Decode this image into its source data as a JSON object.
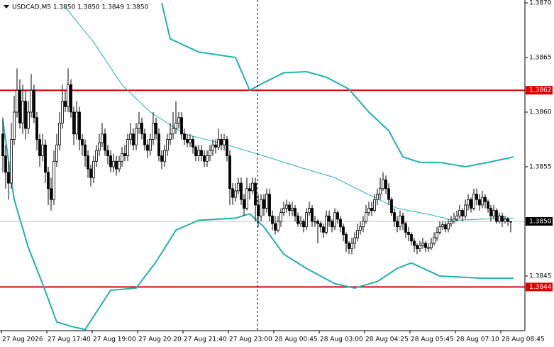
{
  "chart_data": {
    "type": "candlestick",
    "title": "USDCAD,M5  1.3850 1.3850 1.3849 1.3850",
    "ylim": [
      1.384,
      1.387
    ],
    "yticks": [
      {
        "value": 1.387,
        "label": "1.3870"
      },
      {
        "value": 1.3865,
        "label": "1.3865"
      },
      {
        "value": 1.386,
        "label": "1.3860"
      },
      {
        "value": 1.3855,
        "label": "1.3855"
      },
      {
        "value": 1.3845,
        "label": "1.3845"
      }
    ],
    "xticks": [
      {
        "value": 0,
        "label": "27 Aug 2026"
      },
      {
        "value": 16,
        "label": "27 Aug 17:40"
      },
      {
        "value": 32,
        "label": "27 Aug 19:00"
      },
      {
        "value": 48,
        "label": "27 Aug 20:20"
      },
      {
        "value": 64,
        "label": "27 Aug 21:40"
      },
      {
        "value": 80,
        "label": "27 Aug 23:00"
      },
      {
        "value": 96,
        "label": "28 Aug 00:45"
      },
      {
        "value": 112,
        "label": "28 Aug 03:00"
      },
      {
        "value": 128,
        "label": "28 Aug 04:25"
      },
      {
        "value": 144,
        "label": "28 Aug 05:45"
      },
      {
        "value": 160,
        "label": "28 Aug 07:10"
      },
      {
        "value": 176,
        "label": "28 Aug 08:45"
      }
    ],
    "levels": [
      {
        "value": 1.3862,
        "label": "1.3862",
        "color": "#e00000",
        "box_color": "#e00000"
      },
      {
        "value": 1.3844,
        "label": "1.3844",
        "color": "#e00000",
        "box_color": "#e00000"
      },
      {
        "value": 1.385,
        "label": "1.3850",
        "color": "#c0c0c0",
        "box_color": "#000000"
      }
    ],
    "bands": [
      {
        "color": "#20b2aa",
        "x": [
          56,
          59,
          69,
          82,
          87,
          92,
          99,
          107,
          114,
          122,
          129,
          136,
          141,
          147,
          154,
          163,
          171,
          180
        ],
        "values": [
          1.387,
          1.38667,
          1.38655,
          1.3865,
          1.3862,
          1.38627,
          1.38636,
          1.38637,
          1.38632,
          1.38621,
          1.386,
          1.38583,
          1.38559,
          1.38554,
          1.38554,
          1.3855,
          1.38554,
          1.38559
        ]
      },
      {
        "color": "#20b2aa",
        "x": [
          22,
          32,
          42,
          52,
          64,
          79,
          92,
          104,
          117,
          127,
          139,
          149,
          159,
          169,
          180
        ],
        "values": [
          1.38696,
          1.38664,
          1.38625,
          1.386,
          1.3858,
          1.3857,
          1.3856,
          1.3855,
          1.3854,
          1.38527,
          1.38512,
          1.38507,
          1.38501,
          1.38502,
          1.38503
        ]
      },
      {
        "color": "#20b2aa",
        "x": [
          0,
          4,
          9,
          14,
          19,
          24,
          29,
          33,
          38,
          47,
          54,
          61,
          69,
          82,
          87,
          92,
          99,
          107,
          117,
          124,
          132,
          139,
          144,
          154,
          169,
          180
        ],
        "values": [
          1.38592,
          1.3852,
          1.38476,
          1.38443,
          1.38408,
          1.38404,
          1.38401,
          1.38417,
          1.38437,
          1.38439,
          1.38463,
          1.38492,
          1.38501,
          1.38503,
          1.38507,
          1.38495,
          1.3847,
          1.38457,
          1.38443,
          1.38439,
          1.38445,
          1.38457,
          1.38462,
          1.3845,
          1.38448,
          1.38448
        ]
      }
    ],
    "candles": [
      [
        1.3858,
        1.38595,
        1.38545,
        1.3856
      ],
      [
        1.3856,
        1.3857,
        1.3853,
        1.38545
      ],
      [
        1.38545,
        1.38555,
        1.3852,
        1.38535
      ],
      [
        1.38535,
        1.3859,
        1.3853,
        1.38575
      ],
      [
        1.38575,
        1.38615,
        1.3857,
        1.386
      ],
      [
        1.386,
        1.3864,
        1.38595,
        1.3862
      ],
      [
        1.3862,
        1.3863,
        1.38585,
        1.3859
      ],
      [
        1.3859,
        1.38625,
        1.3858,
        1.3861
      ],
      [
        1.3861,
        1.3862,
        1.38575,
        1.38585
      ],
      [
        1.38585,
        1.3861,
        1.3858,
        1.386
      ],
      [
        1.386,
        1.38635,
        1.38595,
        1.3862
      ],
      [
        1.3862,
        1.38625,
        1.3859,
        1.38595
      ],
      [
        1.38595,
        1.386,
        1.38565,
        1.38575
      ],
      [
        1.38575,
        1.3858,
        1.3855,
        1.3856
      ],
      [
        1.3856,
        1.3858,
        1.38555,
        1.3857
      ],
      [
        1.3857,
        1.38575,
        1.38535,
        1.38545
      ],
      [
        1.38545,
        1.3855,
        1.38515,
        1.3853
      ],
      [
        1.3853,
        1.3854,
        1.3851,
        1.3852
      ],
      [
        1.3852,
        1.38565,
        1.38515,
        1.38555
      ],
      [
        1.38555,
        1.3858,
        1.3855,
        1.3857
      ],
      [
        1.3857,
        1.386,
        1.38565,
        1.3859
      ],
      [
        1.3859,
        1.38625,
        1.38585,
        1.3861
      ],
      [
        1.3861,
        1.3862,
        1.386,
        1.38605
      ],
      [
        1.38605,
        1.3864,
        1.386,
        1.38625
      ],
      [
        1.38625,
        1.3863,
        1.38595,
        1.386
      ],
      [
        1.386,
        1.38605,
        1.3857,
        1.3858
      ],
      [
        1.3858,
        1.3861,
        1.38575,
        1.386
      ],
      [
        1.386,
        1.38605,
        1.38565,
        1.38575
      ],
      [
        1.38575,
        1.3858,
        1.3856,
        1.3857
      ],
      [
        1.3857,
        1.38575,
        1.3855,
        1.3856
      ],
      [
        1.3856,
        1.38565,
        1.3854,
        1.38548
      ],
      [
        1.38548,
        1.38552,
        1.38532,
        1.3854
      ],
      [
        1.3854,
        1.3856,
        1.38535,
        1.38555
      ],
      [
        1.38555,
        1.3857,
        1.3855,
        1.38565
      ],
      [
        1.38565,
        1.3858,
        1.3856,
        1.38572
      ],
      [
        1.38572,
        1.3859,
        1.38568,
        1.3858
      ],
      [
        1.3858,
        1.38585,
        1.3856,
        1.38565
      ],
      [
        1.38565,
        1.3857,
        1.38552,
        1.3856
      ],
      [
        1.3856,
        1.38565,
        1.38545,
        1.3855
      ],
      [
        1.3855,
        1.38562,
        1.38545,
        1.38555
      ],
      [
        1.38555,
        1.3856,
        1.38542,
        1.38548
      ],
      [
        1.38548,
        1.3856,
        1.38545,
        1.38555
      ],
      [
        1.38555,
        1.38568,
        1.3855,
        1.38562
      ],
      [
        1.38562,
        1.3857,
        1.38555,
        1.3856
      ],
      [
        1.3856,
        1.3858,
        1.38555,
        1.38575
      ],
      [
        1.38575,
        1.3859,
        1.3857,
        1.3858
      ],
      [
        1.3858,
        1.38585,
        1.38565,
        1.3857
      ],
      [
        1.3857,
        1.3859,
        1.38565,
        1.38585
      ],
      [
        1.38585,
        1.386,
        1.3858,
        1.3859
      ],
      [
        1.3859,
        1.38595,
        1.38575,
        1.3858
      ],
      [
        1.3858,
        1.38585,
        1.38565,
        1.3857
      ],
      [
        1.3857,
        1.38575,
        1.38558,
        1.38565
      ],
      [
        1.38565,
        1.3858,
        1.3856,
        1.38575
      ],
      [
        1.38575,
        1.386,
        1.3857,
        1.3859
      ],
      [
        1.3859,
        1.38595,
        1.38575,
        1.3858
      ],
      [
        1.3858,
        1.38585,
        1.38555,
        1.3856
      ],
      [
        1.3856,
        1.38565,
        1.38548,
        1.38555
      ],
      [
        1.38555,
        1.3857,
        1.3855,
        1.38565
      ],
      [
        1.38565,
        1.3858,
        1.3856,
        1.38575
      ],
      [
        1.38575,
        1.3859,
        1.3857,
        1.3858
      ],
      [
        1.3858,
        1.386,
        1.38575,
        1.38585
      ],
      [
        1.38585,
        1.3861,
        1.3858,
        1.3859
      ],
      [
        1.3859,
        1.386,
        1.38585,
        1.38595
      ],
      [
        1.38595,
        1.386,
        1.38575,
        1.3858
      ],
      [
        1.3858,
        1.38585,
        1.3857,
        1.38575
      ],
      [
        1.38575,
        1.3858,
        1.38568,
        1.38572
      ],
      [
        1.38572,
        1.3858,
        1.38568,
        1.38575
      ],
      [
        1.38575,
        1.38578,
        1.38562,
        1.38568
      ],
      [
        1.38568,
        1.3857,
        1.38555,
        1.3856
      ],
      [
        1.3856,
        1.3857,
        1.38555,
        1.38565
      ],
      [
        1.38565,
        1.3857,
        1.38555,
        1.3856
      ],
      [
        1.3856,
        1.38565,
        1.3855,
        1.38555
      ],
      [
        1.38555,
        1.38565,
        1.3855,
        1.3856
      ],
      [
        1.3856,
        1.3857,
        1.38555,
        1.38565
      ],
      [
        1.38565,
        1.38575,
        1.3856,
        1.3857
      ],
      [
        1.3857,
        1.38575,
        1.38562,
        1.38568
      ],
      [
        1.38568,
        1.38585,
        1.38565,
        1.38575
      ],
      [
        1.38575,
        1.3858,
        1.38565,
        1.3857
      ],
      [
        1.3857,
        1.3858,
        1.38565,
        1.38575
      ],
      [
        1.38575,
        1.38578,
        1.38555,
        1.3856
      ],
      [
        1.3856,
        1.38565,
        1.38515,
        1.3853
      ],
      [
        1.3853,
        1.38535,
        1.38515,
        1.38522
      ],
      [
        1.38522,
        1.38535,
        1.38518,
        1.38528
      ],
      [
        1.38528,
        1.3854,
        1.38525,
        1.38535
      ],
      [
        1.38535,
        1.3854,
        1.38515,
        1.3852
      ],
      [
        1.3852,
        1.38525,
        1.38505,
        1.38512
      ],
      [
        1.38512,
        1.3854,
        1.3851,
        1.3853
      ],
      [
        1.3853,
        1.38535,
        1.3852,
        1.38528
      ],
      [
        1.38528,
        1.3854,
        1.38525,
        1.38535
      ],
      [
        1.38535,
        1.3854,
        1.385,
        1.38515
      ],
      [
        1.38515,
        1.38525,
        1.38495,
        1.38505
      ],
      [
        1.38505,
        1.38525,
        1.385,
        1.3852
      ],
      [
        1.3852,
        1.38525,
        1.38505,
        1.38512
      ],
      [
        1.38512,
        1.3853,
        1.38508,
        1.38525
      ],
      [
        1.38525,
        1.3853,
        1.385,
        1.38505
      ],
      [
        1.38505,
        1.3851,
        1.38492,
        1.38498
      ],
      [
        1.38498,
        1.38505,
        1.38488,
        1.38492
      ],
      [
        1.38492,
        1.38505,
        1.3849,
        1.385
      ],
      [
        1.385,
        1.38512,
        1.38495,
        1.38508
      ],
      [
        1.38508,
        1.38518,
        1.38505,
        1.38512
      ],
      [
        1.38512,
        1.3852,
        1.38508,
        1.38515
      ],
      [
        1.38515,
        1.38518,
        1.38505,
        1.3851
      ],
      [
        1.3851,
        1.38518,
        1.38505,
        1.38512
      ],
      [
        1.38512,
        1.38515,
        1.385,
        1.38505
      ],
      [
        1.38505,
        1.38508,
        1.38495,
        1.38498
      ],
      [
        1.38498,
        1.38505,
        1.38495,
        1.385
      ],
      [
        1.385,
        1.38502,
        1.3849,
        1.38495
      ],
      [
        1.38495,
        1.38512,
        1.38492,
        1.38508
      ],
      [
        1.38508,
        1.38518,
        1.38505,
        1.38512
      ],
      [
        1.38512,
        1.38515,
        1.38495,
        1.385
      ],
      [
        1.385,
        1.38505,
        1.38495,
        1.385
      ],
      [
        1.385,
        1.38502,
        1.3848,
        1.38498
      ],
      [
        1.38498,
        1.385,
        1.3849,
        1.38495
      ],
      [
        1.38495,
        1.38498,
        1.38485,
        1.3849
      ],
      [
        1.3849,
        1.3851,
        1.38488,
        1.38505
      ],
      [
        1.38505,
        1.3851,
        1.38495,
        1.385
      ],
      [
        1.385,
        1.38502,
        1.3849,
        1.38495
      ],
      [
        1.38495,
        1.38512,
        1.38492,
        1.38508
      ],
      [
        1.38508,
        1.3851,
        1.38498,
        1.38502
      ],
      [
        1.38502,
        1.38505,
        1.3849,
        1.38495
      ],
      [
        1.38495,
        1.38498,
        1.38482,
        1.38488
      ],
      [
        1.38488,
        1.3849,
        1.38472,
        1.3848
      ],
      [
        1.3848,
        1.38482,
        1.3847,
        1.38475
      ],
      [
        1.38475,
        1.38485,
        1.3847,
        1.3848
      ],
      [
        1.3848,
        1.3849,
        1.38475,
        1.38485
      ],
      [
        1.38485,
        1.38498,
        1.38482,
        1.38492
      ],
      [
        1.38492,
        1.385,
        1.38488,
        1.38495
      ],
      [
        1.38495,
        1.38505,
        1.3849,
        1.385
      ],
      [
        1.385,
        1.38515,
        1.38498,
        1.38508
      ],
      [
        1.38508,
        1.38518,
        1.38505,
        1.38512
      ],
      [
        1.38512,
        1.38518,
        1.38505,
        1.3851
      ],
      [
        1.3851,
        1.38525,
        1.38508,
        1.3852
      ],
      [
        1.3852,
        1.3853,
        1.38515,
        1.38525
      ],
      [
        1.38525,
        1.3854,
        1.3852,
        1.3853
      ],
      [
        1.3853,
        1.38545,
        1.38528,
        1.38538
      ],
      [
        1.38538,
        1.38542,
        1.38525,
        1.3853
      ],
      [
        1.3853,
        1.38535,
        1.38515,
        1.3852
      ],
      [
        1.3852,
        1.38522,
        1.38505,
        1.38508
      ],
      [
        1.38508,
        1.38512,
        1.38495,
        1.385
      ],
      [
        1.385,
        1.38505,
        1.3849,
        1.38495
      ],
      [
        1.38495,
        1.3851,
        1.38492,
        1.38505
      ],
      [
        1.38505,
        1.38508,
        1.38492,
        1.38498
      ],
      [
        1.38498,
        1.385,
        1.38485,
        1.3849
      ],
      [
        1.3849,
        1.38495,
        1.38482,
        1.38488
      ],
      [
        1.38488,
        1.3849,
        1.38478,
        1.38482
      ],
      [
        1.38482,
        1.38485,
        1.38472,
        1.38478
      ],
      [
        1.38478,
        1.3848,
        1.3847,
        1.38475
      ],
      [
        1.38475,
        1.38482,
        1.38472,
        1.38478
      ],
      [
        1.38478,
        1.38485,
        1.38475,
        1.3848
      ],
      [
        1.3848,
        1.38482,
        1.38472,
        1.38476
      ],
      [
        1.38476,
        1.3848,
        1.38472,
        1.38476
      ],
      [
        1.38476,
        1.38485,
        1.38474,
        1.3848
      ],
      [
        1.3848,
        1.3849,
        1.38478,
        1.38485
      ],
      [
        1.38485,
        1.38495,
        1.38482,
        1.3849
      ],
      [
        1.3849,
        1.385,
        1.38488,
        1.38495
      ],
      [
        1.38495,
        1.385,
        1.38492,
        1.38497
      ],
      [
        1.38497,
        1.385,
        1.3849,
        1.38493
      ],
      [
        1.38493,
        1.38502,
        1.3849,
        1.38498
      ],
      [
        1.38498,
        1.38505,
        1.38495,
        1.385
      ],
      [
        1.385,
        1.38508,
        1.38498,
        1.38502
      ],
      [
        1.38502,
        1.3851,
        1.385,
        1.38505
      ],
      [
        1.38505,
        1.38515,
        1.38502,
        1.3851
      ],
      [
        1.3851,
        1.38512,
        1.385,
        1.38505
      ],
      [
        1.38505,
        1.3852,
        1.38502,
        1.38515
      ],
      [
        1.38515,
        1.38525,
        1.3851,
        1.3852
      ],
      [
        1.3852,
        1.38522,
        1.38508,
        1.38512
      ],
      [
        1.38512,
        1.3853,
        1.3851,
        1.38525
      ],
      [
        1.38525,
        1.3853,
        1.38515,
        1.3852
      ],
      [
        1.3852,
        1.38525,
        1.3851,
        1.38515
      ],
      [
        1.38515,
        1.38528,
        1.38512,
        1.38522
      ],
      [
        1.38522,
        1.38525,
        1.38512,
        1.38518
      ],
      [
        1.38518,
        1.3852,
        1.38508,
        1.38512
      ],
      [
        1.38512,
        1.38515,
        1.385,
        1.38505
      ],
      [
        1.38505,
        1.38515,
        1.38502,
        1.3851
      ],
      [
        1.3851,
        1.38512,
        1.38498,
        1.385
      ],
      [
        1.385,
        1.38508,
        1.38498,
        1.38505
      ],
      [
        1.38505,
        1.38508,
        1.38495,
        1.385
      ],
      [
        1.385,
        1.38505,
        1.38498,
        1.38502
      ],
      [
        1.38502,
        1.38504,
        1.38496,
        1.385
      ],
      [
        1.385,
        1.385,
        1.3849,
        1.385
      ]
    ]
  }
}
